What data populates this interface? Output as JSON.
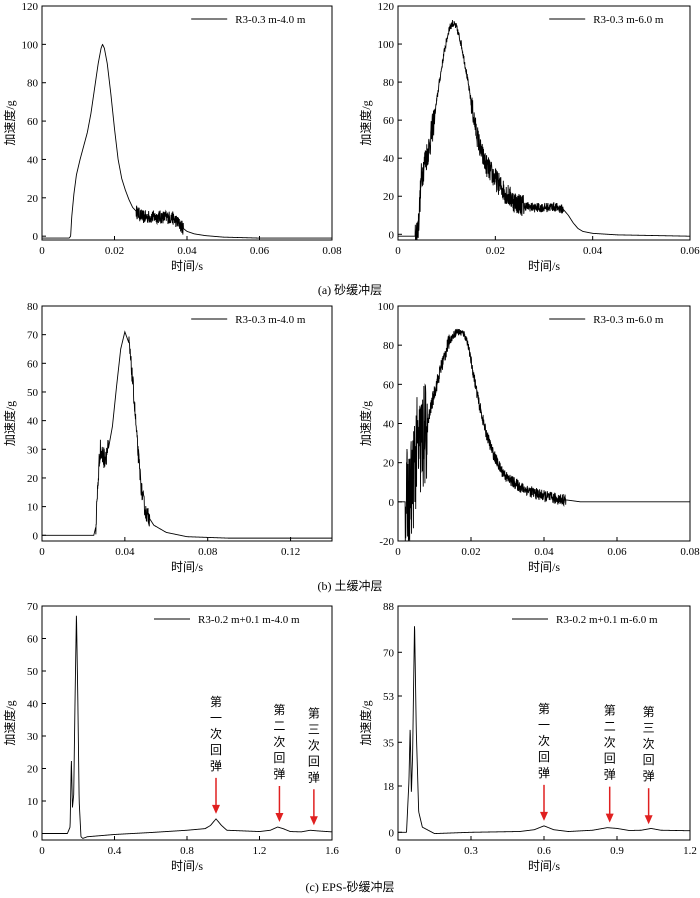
{
  "figure": {
    "captions": [
      "(a) 砂缓冲层",
      "(b) 土缓冲层",
      "(c) EPS-砂缓冲层"
    ]
  },
  "colors": {
    "line": "#000000",
    "arrow": "#e02020"
  },
  "chart_data": [
    {
      "type": "line",
      "row": 0,
      "col": 0,
      "xlabel": "时间/s",
      "ylabel": "加速度/g",
      "xlim": [
        0,
        0.08
      ],
      "ylim": [
        -2,
        120
      ],
      "xticks": [
        0,
        0.02,
        0.04,
        0.06,
        0.08
      ],
      "xtick_labels": [
        "0",
        "0.02",
        "0.04",
        "0.06",
        "0.08"
      ],
      "yticks": [
        0,
        20,
        40,
        60,
        80,
        100,
        120
      ],
      "ytick_labels": [
        "0",
        "20",
        "40",
        "60",
        "80",
        "100",
        "120"
      ],
      "legend_position": "top-right",
      "series": [
        {
          "name": "R3-0.3 m-4.0 m",
          "points": [
            [
              0,
              -1
            ],
            [
              0.0075,
              -1
            ],
            [
              0.0079,
              0
            ],
            [
              0.0082,
              10
            ],
            [
              0.0088,
              22
            ],
            [
              0.0095,
              32
            ],
            [
              0.0105,
              40
            ],
            [
              0.0115,
              47
            ],
            [
              0.0125,
              54
            ],
            [
              0.0135,
              64
            ],
            [
              0.0145,
              77
            ],
            [
              0.0155,
              90
            ],
            [
              0.0163,
              98
            ],
            [
              0.0167,
              100
            ],
            [
              0.0172,
              98
            ],
            [
              0.018,
              90
            ],
            [
              0.019,
              74
            ],
            [
              0.02,
              56
            ],
            [
              0.021,
              40
            ],
            [
              0.022,
              30
            ],
            [
              0.023,
              24
            ],
            [
              0.024,
              19
            ],
            [
              0.025,
              15
            ],
            [
              0.026,
              13
            ],
            [
              0.027,
              11
            ],
            [
              0.028,
              10
            ],
            [
              0.03,
              10
            ],
            [
              0.032,
              10
            ],
            [
              0.034,
              10
            ],
            [
              0.036,
              9.5
            ],
            [
              0.037,
              8
            ],
            [
              0.038,
              6
            ],
            [
              0.039,
              4
            ],
            [
              0.04,
              2.5
            ],
            [
              0.042,
              1.2
            ],
            [
              0.045,
              0.3
            ],
            [
              0.05,
              -0.5
            ],
            [
              0.06,
              -1
            ],
            [
              0.08,
              -1
            ]
          ],
          "noise": [
            [
              0.026,
              0.039,
              3.5
            ]
          ]
        }
      ]
    },
    {
      "type": "line",
      "row": 0,
      "col": 1,
      "xlabel": "时间/s",
      "ylabel": "加速度/g",
      "xlim": [
        0,
        0.06
      ],
      "ylim": [
        -3,
        120
      ],
      "xticks": [
        0,
        0.02,
        0.04,
        0.06
      ],
      "xtick_labels": [
        "0",
        "0.02",
        "0.04",
        "0.06"
      ],
      "yticks": [
        0,
        20,
        40,
        60,
        80,
        100,
        120
      ],
      "ytick_labels": [
        "0",
        "20",
        "40",
        "60",
        "80",
        "100",
        "120"
      ],
      "legend_position": "top-right",
      "series": [
        {
          "name": "R3-0.3 m-6.0 m",
          "points": [
            [
              0,
              -1
            ],
            [
              0.0035,
              -1
            ],
            [
              0.0042,
              5
            ],
            [
              0.0048,
              30
            ],
            [
              0.0055,
              38
            ],
            [
              0.0065,
              47
            ],
            [
              0.0075,
              62
            ],
            [
              0.0085,
              80
            ],
            [
              0.0095,
              96
            ],
            [
              0.0105,
              108
            ],
            [
              0.0112,
              111
            ],
            [
              0.012,
              109
            ],
            [
              0.013,
              100
            ],
            [
              0.014,
              86
            ],
            [
              0.015,
              70
            ],
            [
              0.016,
              55
            ],
            [
              0.017,
              44
            ],
            [
              0.018,
              37
            ],
            [
              0.019,
              33
            ],
            [
              0.02,
              29
            ],
            [
              0.022,
              22
            ],
            [
              0.024,
              17
            ],
            [
              0.026,
              15
            ],
            [
              0.028,
              14
            ],
            [
              0.03,
              14
            ],
            [
              0.032,
              14.5
            ],
            [
              0.034,
              13
            ],
            [
              0.035,
              10
            ],
            [
              0.036,
              6
            ],
            [
              0.037,
              3
            ],
            [
              0.038,
              1.5
            ],
            [
              0.04,
              0.5
            ],
            [
              0.045,
              -0.3
            ],
            [
              0.06,
              -1
            ]
          ],
          "noise": [
            [
              0.0035,
              0.0075,
              8
            ],
            [
              0.0075,
              0.015,
              2
            ],
            [
              0.015,
              0.026,
              6
            ],
            [
              0.026,
              0.034,
              2.5
            ]
          ]
        }
      ]
    },
    {
      "type": "line",
      "row": 1,
      "col": 0,
      "xlabel": "时间/s",
      "ylabel": "加速度/g",
      "xlim": [
        0,
        0.14
      ],
      "ylim": [
        -2,
        80
      ],
      "xticks": [
        0,
        0.04,
        0.08,
        0.12
      ],
      "xtick_labels": [
        "0",
        "0.04",
        "0.08",
        "0.12"
      ],
      "yticks": [
        0,
        10,
        20,
        30,
        40,
        50,
        60,
        70,
        80
      ],
      "ytick_labels": [
        "0",
        "10",
        "20",
        "30",
        "40",
        "50",
        "60",
        "70",
        "80"
      ],
      "legend_position": "top-right",
      "series": [
        {
          "name": "R3-0.3 m-4.0 m",
          "points": [
            [
              0,
              0
            ],
            [
              0.025,
              0
            ],
            [
              0.026,
              3
            ],
            [
              0.027,
              18
            ],
            [
              0.028,
              30
            ],
            [
              0.029,
              28
            ],
            [
              0.03,
              27
            ],
            [
              0.032,
              30
            ],
            [
              0.034,
              38
            ],
            [
              0.036,
              52
            ],
            [
              0.038,
              65
            ],
            [
              0.04,
              71
            ],
            [
              0.042,
              67
            ],
            [
              0.044,
              52
            ],
            [
              0.046,
              32
            ],
            [
              0.048,
              16
            ],
            [
              0.05,
              8
            ],
            [
              0.054,
              3.5
            ],
            [
              0.06,
              1
            ],
            [
              0.07,
              -0.5
            ],
            [
              0.09,
              -1
            ],
            [
              0.14,
              -1
            ]
          ],
          "noise": [
            [
              0.026,
              0.032,
              4
            ],
            [
              0.042,
              0.052,
              3
            ]
          ]
        }
      ]
    },
    {
      "type": "line",
      "row": 1,
      "col": 1,
      "xlabel": "时间/s",
      "ylabel": "加速度/g",
      "xlim": [
        0,
        0.08
      ],
      "ylim": [
        -20,
        100
      ],
      "xticks": [
        0,
        0.02,
        0.04,
        0.06,
        0.08
      ],
      "xtick_labels": [
        "0",
        "0.02",
        "0.04",
        "0.06",
        "0.08"
      ],
      "yticks": [
        -20,
        0,
        20,
        40,
        60,
        80,
        100
      ],
      "ytick_labels": [
        "-20",
        "0",
        "20",
        "40",
        "60",
        "80",
        "100"
      ],
      "legend_position": "top-right",
      "series": [
        {
          "name": "R3-0.3 m-6.0 m",
          "points": [
            [
              0,
              0
            ],
            [
              0.003,
              0
            ],
            [
              0.004,
              10
            ],
            [
              0.005,
              25
            ],
            [
              0.006,
              28
            ],
            [
              0.007,
              32
            ],
            [
              0.008,
              38
            ],
            [
              0.009,
              48
            ],
            [
              0.01,
              56
            ],
            [
              0.012,
              70
            ],
            [
              0.014,
              82
            ],
            [
              0.016,
              87
            ],
            [
              0.018,
              86
            ],
            [
              0.019,
              82
            ],
            [
              0.02,
              72
            ],
            [
              0.022,
              52
            ],
            [
              0.024,
              36
            ],
            [
              0.026,
              25
            ],
            [
              0.028,
              17
            ],
            [
              0.03,
              12
            ],
            [
              0.034,
              7
            ],
            [
              0.038,
              4
            ],
            [
              0.042,
              2
            ],
            [
              0.046,
              1
            ],
            [
              0.05,
              0
            ],
            [
              0.08,
              0
            ]
          ],
          "noise": [
            [
              0.002,
              0.008,
              28
            ],
            [
              0.008,
              0.014,
              4
            ],
            [
              0.014,
              0.02,
              2
            ],
            [
              0.02,
              0.046,
              3
            ]
          ]
        }
      ]
    },
    {
      "type": "line",
      "row": 2,
      "col": 0,
      "xlabel": "时间/s",
      "ylabel": "加速度/g",
      "xlim": [
        0,
        1.6
      ],
      "ylim": [
        -2,
        70
      ],
      "xticks": [
        0,
        0.4,
        0.8,
        1.2,
        1.6
      ],
      "xtick_labels": [
        "0",
        "0.4",
        "0.8",
        "1.2",
        "1.6"
      ],
      "yticks": [
        0,
        10,
        20,
        30,
        40,
        50,
        60,
        70
      ],
      "ytick_labels": [
        "0",
        "10",
        "20",
        "30",
        "40",
        "50",
        "60",
        "70"
      ],
      "legend_position": "top-right",
      "series": [
        {
          "name": "R3-0.2 m+0.1 m-4.0 m",
          "points": [
            [
              0,
              0
            ],
            [
              0.14,
              0
            ],
            [
              0.155,
              2
            ],
            [
              0.162,
              23
            ],
            [
              0.168,
              8
            ],
            [
              0.175,
              12
            ],
            [
              0.182,
              40
            ],
            [
              0.19,
              68
            ],
            [
              0.198,
              40
            ],
            [
              0.205,
              10
            ],
            [
              0.215,
              -1
            ],
            [
              0.225,
              -1.5
            ],
            [
              0.25,
              -1
            ],
            [
              0.4,
              -0.3
            ],
            [
              0.6,
              0.3
            ],
            [
              0.8,
              1
            ],
            [
              0.9,
              1.5
            ],
            [
              0.93,
              2.5
            ],
            [
              0.96,
              4.5
            ],
            [
              0.99,
              2.5
            ],
            [
              1.02,
              1
            ],
            [
              1.2,
              0.6
            ],
            [
              1.26,
              1
            ],
            [
              1.3,
              2
            ],
            [
              1.33,
              1.5
            ],
            [
              1.37,
              0.6
            ],
            [
              1.43,
              0.5
            ],
            [
              1.48,
              1
            ],
            [
              1.52,
              0.8
            ],
            [
              1.6,
              0.5
            ]
          ],
          "noise": []
        }
      ],
      "annotations": [
        {
          "text": "第一次回弹",
          "x": 0.96,
          "y": 4.5
        },
        {
          "text": "第二次回弹",
          "x": 1.31,
          "y": 2
        },
        {
          "text": "第三次回弹",
          "x": 1.5,
          "y": 1
        }
      ]
    },
    {
      "type": "line",
      "row": 2,
      "col": 1,
      "xlabel": "时间/s",
      "ylabel": "加速度/g",
      "xlim": [
        0,
        1.2
      ],
      "ylim": [
        -3,
        88
      ],
      "xticks": [
        0,
        0.3,
        0.6,
        0.9,
        1.2
      ],
      "xtick_labels": [
        "0",
        "0.3",
        "0.6",
        "0.9",
        "1.2"
      ],
      "yticks": [
        0,
        18,
        35,
        53,
        70,
        88
      ],
      "ytick_labels": [
        "0",
        "18",
        "35",
        "53",
        "70",
        "88"
      ],
      "legend_position": "top-right",
      "series": [
        {
          "name": "R3-0.2 m+0.1 m-6.0 m",
          "points": [
            [
              0,
              0
            ],
            [
              0.035,
              0
            ],
            [
              0.045,
              20
            ],
            [
              0.05,
              41
            ],
            [
              0.055,
              15
            ],
            [
              0.06,
              30
            ],
            [
              0.068,
              82
            ],
            [
              0.075,
              40
            ],
            [
              0.085,
              8
            ],
            [
              0.1,
              2
            ],
            [
              0.15,
              -0.5
            ],
            [
              0.3,
              0
            ],
            [
              0.5,
              0.3
            ],
            [
              0.56,
              1
            ],
            [
              0.6,
              2.5
            ],
            [
              0.64,
              1
            ],
            [
              0.7,
              0.3
            ],
            [
              0.8,
              0.8
            ],
            [
              0.86,
              1.8
            ],
            [
              0.9,
              1.5
            ],
            [
              0.95,
              0.7
            ],
            [
              1.0,
              0.8
            ],
            [
              1.04,
              1.5
            ],
            [
              1.08,
              0.8
            ],
            [
              1.2,
              0.6
            ]
          ],
          "noise": []
        }
      ],
      "annotations": [
        {
          "text": "第一次回弹",
          "x": 0.6,
          "y": 2.5
        },
        {
          "text": "第二次回弹",
          "x": 0.87,
          "y": 1.8
        },
        {
          "text": "第三次回弹",
          "x": 1.03,
          "y": 1.2
        }
      ]
    }
  ]
}
